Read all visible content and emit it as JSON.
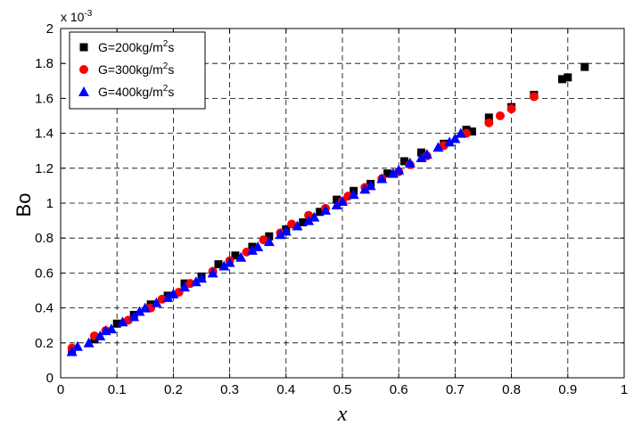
{
  "chart_data": {
    "type": "scatter",
    "xlabel": "x",
    "ylabel": "Bo",
    "y_scale_factor": {
      "base": "x 10",
      "exponent": "-3"
    },
    "xlim": [
      0,
      1
    ],
    "ylim": [
      0,
      2
    ],
    "x_ticks": [
      "0",
      "0.1",
      "0.2",
      "0.3",
      "0.4",
      "0.5",
      "0.6",
      "0.7",
      "0.8",
      "0.9",
      "1"
    ],
    "y_ticks": [
      "0",
      "0.2",
      "0.4",
      "0.6",
      "0.8",
      "1",
      "1.2",
      "1.4",
      "1.6",
      "1.8",
      "2"
    ],
    "grid": true,
    "legend_position": "top-left",
    "series": [
      {
        "name": "G=200kg/m2s",
        "legend_parts": [
          "G=200kg/m",
          "2",
          "s"
        ],
        "marker": "square",
        "color": "#000000",
        "points": [
          [
            0.02,
            0.16
          ],
          [
            0.06,
            0.22
          ],
          [
            0.1,
            0.31
          ],
          [
            0.13,
            0.36
          ],
          [
            0.16,
            0.42
          ],
          [
            0.19,
            0.47
          ],
          [
            0.22,
            0.54
          ],
          [
            0.25,
            0.58
          ],
          [
            0.28,
            0.65
          ],
          [
            0.31,
            0.7
          ],
          [
            0.34,
            0.75
          ],
          [
            0.37,
            0.81
          ],
          [
            0.4,
            0.85
          ],
          [
            0.43,
            0.89
          ],
          [
            0.46,
            0.95
          ],
          [
            0.49,
            1.02
          ],
          [
            0.52,
            1.07
          ],
          [
            0.55,
            1.11
          ],
          [
            0.58,
            1.17
          ],
          [
            0.61,
            1.24
          ],
          [
            0.64,
            1.29
          ],
          [
            0.68,
            1.34
          ],
          [
            0.72,
            1.42
          ],
          [
            0.73,
            1.41
          ],
          [
            0.76,
            1.49
          ],
          [
            0.8,
            1.55
          ],
          [
            0.84,
            1.62
          ],
          [
            0.89,
            1.71
          ],
          [
            0.9,
            1.72
          ],
          [
            0.93,
            1.78
          ]
        ]
      },
      {
        "name": "G=300kg/m2s",
        "legend_parts": [
          "G=300kg/m",
          "2",
          "s"
        ],
        "marker": "circle",
        "color": "#ff0000",
        "points": [
          [
            0.02,
            0.17
          ],
          [
            0.06,
            0.24
          ],
          [
            0.08,
            0.27
          ],
          [
            0.12,
            0.33
          ],
          [
            0.16,
            0.4
          ],
          [
            0.18,
            0.45
          ],
          [
            0.21,
            0.49
          ],
          [
            0.23,
            0.54
          ],
          [
            0.27,
            0.61
          ],
          [
            0.3,
            0.67
          ],
          [
            0.33,
            0.72
          ],
          [
            0.36,
            0.79
          ],
          [
            0.39,
            0.83
          ],
          [
            0.41,
            0.88
          ],
          [
            0.44,
            0.93
          ],
          [
            0.47,
            0.97
          ],
          [
            0.5,
            1.01
          ],
          [
            0.51,
            1.04
          ],
          [
            0.54,
            1.09
          ],
          [
            0.57,
            1.14
          ],
          [
            0.6,
            1.18
          ],
          [
            0.62,
            1.22
          ],
          [
            0.65,
            1.27
          ],
          [
            0.68,
            1.33
          ],
          [
            0.72,
            1.4
          ],
          [
            0.76,
            1.46
          ],
          [
            0.78,
            1.5
          ],
          [
            0.8,
            1.54
          ],
          [
            0.84,
            1.61
          ]
        ]
      },
      {
        "name": "G=400kg/m2s",
        "legend_parts": [
          "G=400kg/m",
          "2",
          "s"
        ],
        "marker": "triangle",
        "color": "#0000ff",
        "points": [
          [
            0.02,
            0.15
          ],
          [
            0.03,
            0.18
          ],
          [
            0.05,
            0.2
          ],
          [
            0.07,
            0.24
          ],
          [
            0.08,
            0.27
          ],
          [
            0.09,
            0.28
          ],
          [
            0.11,
            0.32
          ],
          [
            0.13,
            0.35
          ],
          [
            0.14,
            0.38
          ],
          [
            0.15,
            0.4
          ],
          [
            0.17,
            0.43
          ],
          [
            0.19,
            0.46
          ],
          [
            0.2,
            0.48
          ],
          [
            0.22,
            0.52
          ],
          [
            0.24,
            0.55
          ],
          [
            0.25,
            0.57
          ],
          [
            0.27,
            0.6
          ],
          [
            0.29,
            0.64
          ],
          [
            0.3,
            0.66
          ],
          [
            0.32,
            0.69
          ],
          [
            0.34,
            0.73
          ],
          [
            0.35,
            0.75
          ],
          [
            0.37,
            0.78
          ],
          [
            0.39,
            0.82
          ],
          [
            0.4,
            0.84
          ],
          [
            0.42,
            0.87
          ],
          [
            0.44,
            0.9
          ],
          [
            0.45,
            0.92
          ],
          [
            0.47,
            0.96
          ],
          [
            0.49,
            0.99
          ],
          [
            0.5,
            1.01
          ],
          [
            0.52,
            1.05
          ],
          [
            0.54,
            1.08
          ],
          [
            0.55,
            1.1
          ],
          [
            0.57,
            1.14
          ],
          [
            0.59,
            1.17
          ],
          [
            0.6,
            1.19
          ],
          [
            0.62,
            1.23
          ],
          [
            0.64,
            1.26
          ],
          [
            0.65,
            1.28
          ],
          [
            0.67,
            1.32
          ],
          [
            0.69,
            1.35
          ],
          [
            0.7,
            1.37
          ],
          [
            0.71,
            1.4
          ]
        ]
      }
    ]
  }
}
